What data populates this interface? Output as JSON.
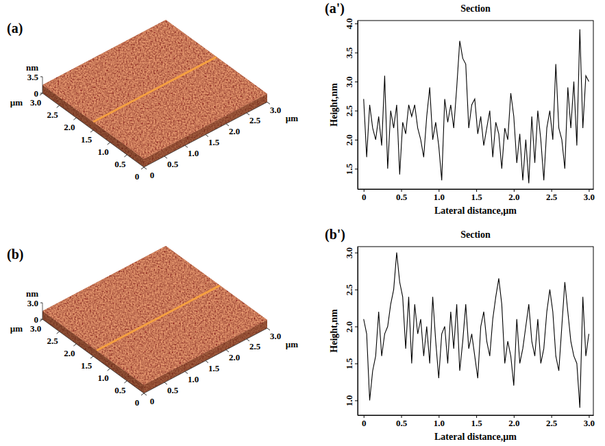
{
  "chart_data": [
    {
      "type": "surface",
      "panel_label": "(a)",
      "x_label": "µm",
      "y_label": "µm",
      "z_label": "nm",
      "xlim": [
        0,
        3
      ],
      "xticks": [
        0,
        0.5,
        {
          "value": 1,
          "label": "1.0"
        },
        1.5,
        {
          "value": 2,
          "label": "2.0"
        },
        2.5,
        {
          "value": 3,
          "label": "3.0"
        }
      ],
      "ylim": [
        0,
        3
      ],
      "yticks": [
        0,
        0.5,
        {
          "value": 1,
          "label": "1.0"
        },
        1.5,
        {
          "value": 2,
          "label": "2.0"
        },
        2.5,
        {
          "value": 3,
          "label": "3.0"
        }
      ],
      "zlim": [
        0,
        3.5
      ],
      "zticks": [
        0,
        3.5
      ],
      "section_y": 1.5,
      "color": "#8b3a1c"
    },
    {
      "type": "line",
      "panel_label": "(a')",
      "title": "Section",
      "x_label": "Lateral distance,µm",
      "y_label": "Height,nm",
      "xlim": [
        -0.08,
        3.06
      ],
      "xticks": [
        0,
        0.5,
        {
          "value": 1,
          "label": "1.0"
        },
        1.5,
        {
          "value": 2,
          "label": "2.0"
        },
        2.5,
        {
          "value": 3,
          "label": "3.0"
        }
      ],
      "ylim": [
        1.15,
        4.05
      ],
      "yticks": [
        1.5,
        {
          "value": 2,
          "label": "2.0"
        },
        2.5,
        {
          "value": 3,
          "label": "3.0"
        },
        3.5,
        {
          "value": 4,
          "label": "4.0"
        }
      ],
      "x": [
        0,
        0.04,
        0.08,
        0.12,
        0.16,
        0.2,
        0.24,
        0.28,
        0.32,
        0.36,
        0.4,
        0.44,
        0.48,
        0.52,
        0.56,
        0.6,
        0.64,
        0.68,
        0.72,
        0.76,
        0.8,
        0.84,
        0.88,
        0.92,
        0.96,
        1,
        1.04,
        1.08,
        1.12,
        1.16,
        1.2,
        1.24,
        1.28,
        1.32,
        1.36,
        1.4,
        1.44,
        1.48,
        1.52,
        1.56,
        1.6,
        1.64,
        1.68,
        1.72,
        1.76,
        1.8,
        1.84,
        1.88,
        1.92,
        1.96,
        2,
        2.04,
        2.08,
        2.12,
        2.16,
        2.2,
        2.24,
        2.28,
        2.32,
        2.36,
        2.4,
        2.44,
        2.48,
        2.52,
        2.56,
        2.6,
        2.64,
        2.68,
        2.72,
        2.76,
        2.8,
        2.84,
        2.88,
        2.92,
        2.96,
        3
      ],
      "series": [
        {
          "color": "#000000",
          "values": [
            2.7,
            1.7,
            2.6,
            2.2,
            2.0,
            2.4,
            1.9,
            3.1,
            1.5,
            2.5,
            2.2,
            2.6,
            1.4,
            2.3,
            2.1,
            2.6,
            2.4,
            2.6,
            2.2,
            2.0,
            1.7,
            2.4,
            2.9,
            2.0,
            2.3,
            1.9,
            1.3,
            2.7,
            2.3,
            2.6,
            2.2,
            2.9,
            3.7,
            3.4,
            3.3,
            2.2,
            2.6,
            2.7,
            2.1,
            2.4,
            1.9,
            2.2,
            2.5,
            1.7,
            2.3,
            2.1,
            1.5,
            2.2,
            2.0,
            2.8,
            2.4,
            1.6,
            2.1,
            1.3,
            2.0,
            1.25,
            2.4,
            1.6,
            2.5,
            2.0,
            1.3,
            2.2,
            2.5,
            2.0,
            3.3,
            2.2,
            2.0,
            1.5,
            2.9,
            2.2,
            3.0,
            1.9,
            3.9,
            2.2,
            3.1,
            3.0
          ]
        }
      ]
    },
    {
      "type": "surface",
      "panel_label": "(b)",
      "x_label": "µm",
      "y_label": "µm",
      "z_label": "nm",
      "xlim": [
        0,
        3
      ],
      "xticks": [
        0,
        0.5,
        {
          "value": 1,
          "label": "1.0"
        },
        1.5,
        {
          "value": 2,
          "label": "2.0"
        },
        2.5,
        {
          "value": 3,
          "label": "3.0"
        }
      ],
      "ylim": [
        0,
        3
      ],
      "yticks": [
        0,
        0.5,
        {
          "value": 1,
          "label": "1.0"
        },
        1.5,
        {
          "value": 2,
          "label": "2.0"
        },
        2.5,
        {
          "value": 3,
          "label": "3.0"
        }
      ],
      "zlim": [
        0,
        3
      ],
      "zticks": [
        0,
        {
          "value": 3,
          "label": "3.0"
        }
      ],
      "section_y": 1.4,
      "color": "#8b3a1c"
    },
    {
      "type": "line",
      "panel_label": "(b')",
      "title": "Section",
      "x_label": "Lateral distance,µm",
      "y_label": "Height,nm",
      "xlim": [
        -0.08,
        3.06
      ],
      "xticks": [
        0,
        0.5,
        {
          "value": 1,
          "label": "1.0"
        },
        1.5,
        {
          "value": 2,
          "label": "2.0"
        },
        2.5,
        {
          "value": 3,
          "label": "3.0"
        }
      ],
      "ylim": [
        0.8,
        3.08
      ],
      "yticks": [
        {
          "value": 1,
          "label": "1.0"
        },
        1.5,
        {
          "value": 2,
          "label": "2.0"
        },
        2.5,
        {
          "value": 3,
          "label": "3.0"
        }
      ],
      "x": [
        0,
        0.04,
        0.08,
        0.12,
        0.16,
        0.2,
        0.24,
        0.28,
        0.32,
        0.36,
        0.4,
        0.44,
        0.48,
        0.52,
        0.56,
        0.6,
        0.64,
        0.68,
        0.72,
        0.76,
        0.8,
        0.84,
        0.88,
        0.92,
        0.96,
        1,
        1.04,
        1.08,
        1.12,
        1.16,
        1.2,
        1.24,
        1.28,
        1.32,
        1.36,
        1.4,
        1.44,
        1.48,
        1.52,
        1.56,
        1.6,
        1.64,
        1.68,
        1.72,
        1.76,
        1.8,
        1.84,
        1.88,
        1.92,
        1.96,
        2,
        2.04,
        2.08,
        2.12,
        2.16,
        2.2,
        2.24,
        2.28,
        2.32,
        2.36,
        2.4,
        2.44,
        2.48,
        2.52,
        2.56,
        2.6,
        2.64,
        2.68,
        2.72,
        2.76,
        2.8,
        2.84,
        2.88,
        2.92,
        2.96,
        3
      ],
      "series": [
        {
          "color": "#000000",
          "values": [
            2.1,
            1.9,
            1.0,
            1.4,
            1.6,
            2.2,
            1.6,
            1.9,
            2.0,
            2.3,
            2.5,
            3.0,
            2.6,
            2.4,
            1.7,
            2.4,
            1.5,
            2.3,
            1.9,
            2.1,
            1.6,
            2.0,
            1.5,
            2.4,
            1.8,
            1.3,
            1.9,
            2.0,
            1.5,
            2.2,
            1.7,
            2.3,
            1.4,
            1.8,
            2.3,
            1.7,
            1.9,
            1.6,
            1.3,
            2.0,
            2.2,
            1.8,
            1.6,
            2.1,
            2.4,
            2.65,
            2.3,
            1.5,
            1.8,
            1.6,
            1.2,
            2.1,
            1.5,
            1.7,
            2.0,
            2.3,
            1.8,
            1.6,
            2.1,
            1.5,
            1.7,
            2.2,
            2.5,
            2.2,
            1.6,
            1.4,
            2.0,
            2.6,
            2.2,
            1.8,
            1.6,
            1.5,
            0.9,
            2.4,
            1.6,
            1.9
          ]
        }
      ]
    }
  ]
}
